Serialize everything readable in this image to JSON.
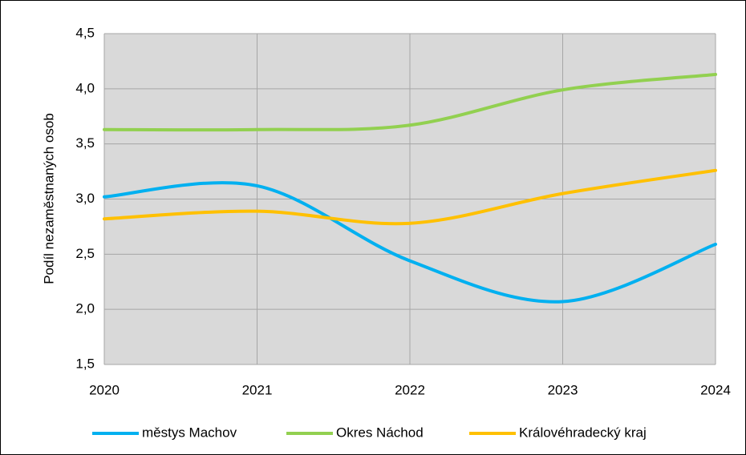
{
  "chart_data": {
    "type": "line",
    "y_label": "Podíl nezaměstnaných osob",
    "x": [
      2020,
      2021,
      2022,
      2023,
      2024
    ],
    "xlim": [
      2020,
      2024
    ],
    "xticks": [
      2020,
      2021,
      2022,
      2023,
      2024
    ],
    "ylim": [
      1.5,
      4.5
    ],
    "yticks": [
      {
        "value": 1.5,
        "label": "1,5"
      },
      {
        "value": 2.0,
        "label": "2,0"
      },
      {
        "value": 2.5,
        "label": "2,5"
      },
      {
        "value": 3.0,
        "label": "3,0"
      },
      {
        "value": 3.5,
        "label": "3,5"
      },
      {
        "value": 4.0,
        "label": "4,0"
      },
      {
        "value": 4.5,
        "label": "4,5"
      }
    ],
    "grid": true,
    "smooth": true,
    "legend": "bottom",
    "series": [
      {
        "name": "městys Machov",
        "color": "#00b0f0",
        "values": [
          3.02,
          3.12,
          2.44,
          2.07,
          2.59
        ]
      },
      {
        "name": "Okres Náchod",
        "color": "#92d050",
        "values": [
          3.63,
          3.63,
          3.67,
          3.99,
          4.13
        ]
      },
      {
        "name": "Královéhradecký kraj",
        "color": "#ffc000",
        "values": [
          2.82,
          2.89,
          2.78,
          3.05,
          3.26
        ]
      }
    ]
  }
}
